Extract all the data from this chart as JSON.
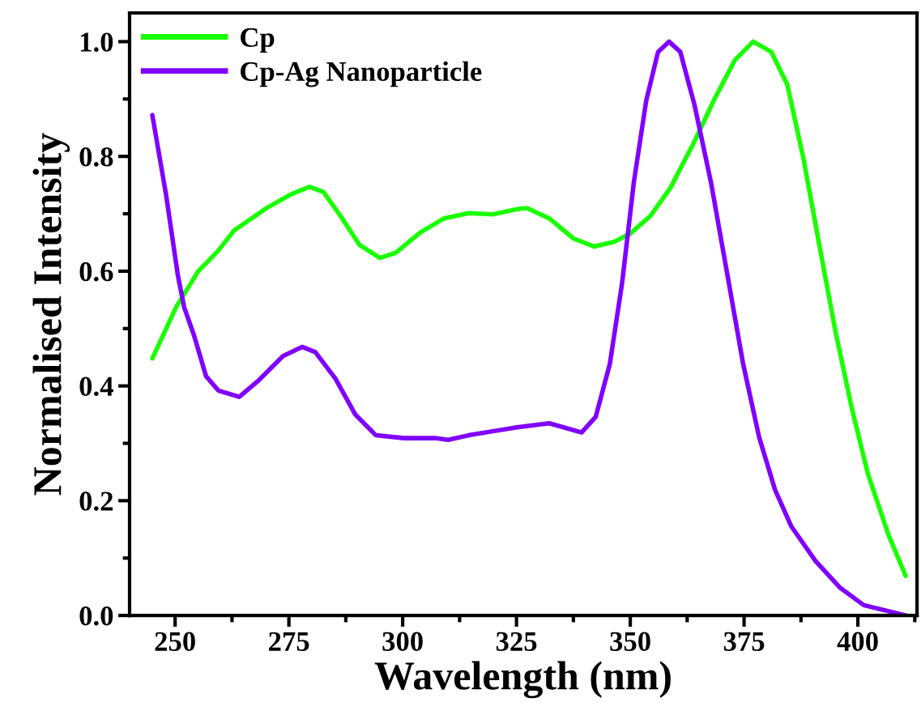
{
  "chart_data": {
    "type": "line",
    "xlabel": "Wavelength (nm)",
    "ylabel": "Normalised Intensity",
    "xlim": [
      240,
      413
    ],
    "ylim": [
      0,
      1.05
    ],
    "xticks": [
      250,
      {
        "value": 262.5,
        "label": null
      },
      275,
      {
        "value": 287.5,
        "label": null
      },
      300,
      {
        "value": 312.5,
        "label": null
      },
      325,
      {
        "value": 337.5,
        "label": null
      },
      350,
      {
        "value": 362.5,
        "label": null
      },
      375,
      {
        "value": 387.5,
        "label": null
      },
      400,
      {
        "value": 412.5,
        "label": null
      }
    ],
    "yticks": [
      {
        "value": 0,
        "label": "0.0"
      },
      {
        "value": 0.1,
        "label": null
      },
      0.2,
      {
        "value": 0.3,
        "label": null
      },
      0.4,
      {
        "value": 0.5,
        "label": null
      },
      0.6,
      {
        "value": 0.7,
        "label": null
      },
      0.8,
      {
        "value": 0.9,
        "label": null
      },
      {
        "value": 1,
        "label": "1.0"
      }
    ],
    "legend": "top left",
    "grid": false,
    "marker": "none",
    "line_style": "solid",
    "series": [
      {
        "name": "Cp",
        "color": "#1aff00",
        "x": [
          245.0,
          250.2,
          255.1,
          259.5,
          263.0,
          270.1,
          275.5,
          279.5,
          282.6,
          286.1,
          290.5,
          295.0,
          298.5,
          303.8,
          309.1,
          314.5,
          319.8,
          325.1,
          327.3,
          332.2,
          337.5,
          342.0,
          346.4,
          349.9,
          354.4,
          358.8,
          364.1,
          368.5,
          373.0,
          377.0,
          381.0,
          384.5,
          388.0,
          391.6,
          395.1,
          398.7,
          402.2,
          406.7,
          410.5
        ],
        "values": [
          0.448,
          0.537,
          0.6,
          0.636,
          0.671,
          0.71,
          0.734,
          0.747,
          0.738,
          0.699,
          0.646,
          0.623,
          0.632,
          0.667,
          0.692,
          0.701,
          0.699,
          0.708,
          0.71,
          0.692,
          0.657,
          0.643,
          0.651,
          0.665,
          0.696,
          0.745,
          0.826,
          0.9,
          0.968,
          1.0,
          0.982,
          0.925,
          0.798,
          0.643,
          0.494,
          0.36,
          0.247,
          0.141,
          0.069
        ]
      },
      {
        "name": "Cp-Ag Nanoparticle",
        "color": "#8000ff",
        "x": [
          245.0,
          248.0,
          250.6,
          252.0,
          254.2,
          256.8,
          259.5,
          264.1,
          268.4,
          273.7,
          277.9,
          280.8,
          285.2,
          289.6,
          294.1,
          300.3,
          307.4,
          310.0,
          314.5,
          319.8,
          325.1,
          332.2,
          339.3,
          342.4,
          345.5,
          348.2,
          350.8,
          353.5,
          356.1,
          358.5,
          361.0,
          364.1,
          367.7,
          371.2,
          374.8,
          378.3,
          381.8,
          385.4,
          390.7,
          396.0,
          401.3,
          410.6
        ],
        "values": [
          0.872,
          0.734,
          0.593,
          0.537,
          0.487,
          0.417,
          0.392,
          0.381,
          0.41,
          0.452,
          0.468,
          0.459,
          0.413,
          0.35,
          0.314,
          0.309,
          0.309,
          0.306,
          0.314,
          0.321,
          0.328,
          0.335,
          0.319,
          0.346,
          0.438,
          0.579,
          0.756,
          0.897,
          0.982,
          1.0,
          0.982,
          0.89,
          0.756,
          0.6,
          0.438,
          0.311,
          0.219,
          0.155,
          0.095,
          0.049,
          0.018,
          0.0
        ]
      }
    ]
  }
}
